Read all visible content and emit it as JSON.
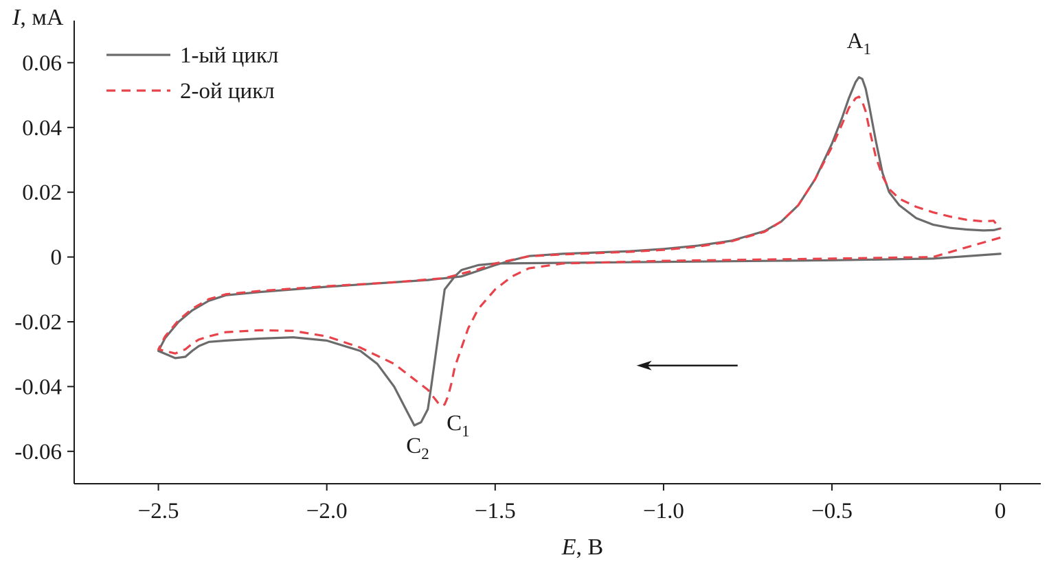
{
  "chart_data": {
    "type": "line",
    "title": "",
    "xlabel": {
      "var": "E",
      "unit": ", В"
    },
    "ylabel": {
      "var": "I",
      "unit": ", мА"
    },
    "xlim": [
      -2.75,
      0.12
    ],
    "ylim": [
      -0.07,
      0.073
    ],
    "xticks": [
      -2.5,
      -2.0,
      -1.5,
      -1.0,
      -0.5,
      0
    ],
    "xtick_labels": [
      "−2.5",
      "−2.0",
      "−1.5",
      "−1.0",
      "−0.5",
      "0"
    ],
    "yticks": [
      0.06,
      0.04,
      0.02,
      0,
      -0.02,
      -0.04,
      -0.06
    ],
    "ytick_labels": [
      "0.06",
      "0.04",
      "0.02",
      "0",
      "-0.02",
      "-0.04",
      "-0.06"
    ],
    "grid": false,
    "legend_position": "top-left",
    "series": [
      {
        "name": "1-ый цикл",
        "color": "#6b6b6b",
        "style": "solid",
        "x": [
          0.0,
          -0.2,
          -0.5,
          -1.0,
          -1.5,
          -1.55,
          -1.6,
          -1.62,
          -1.65,
          -1.67,
          -1.69,
          -1.7,
          -1.72,
          -1.74,
          -1.76,
          -1.8,
          -1.85,
          -1.9,
          -2.0,
          -2.1,
          -2.2,
          -2.3,
          -2.35,
          -2.38,
          -2.4,
          -2.42,
          -2.45,
          -2.5,
          -2.48,
          -2.44,
          -2.4,
          -2.35,
          -2.3,
          -2.2,
          -2.0,
          -1.8,
          -1.7,
          -1.6,
          -1.5,
          -1.45,
          -1.4,
          -1.3,
          -1.2,
          -1.1,
          -1.0,
          -0.9,
          -0.8,
          -0.7,
          -0.65,
          -0.6,
          -0.55,
          -0.5,
          -0.47,
          -0.45,
          -0.43,
          -0.42,
          -0.41,
          -0.4,
          -0.39,
          -0.37,
          -0.35,
          -0.33,
          -0.3,
          -0.25,
          -0.2,
          -0.15,
          -0.1,
          -0.05,
          -0.02,
          0.0
        ],
        "y": [
          0.001,
          -0.0005,
          -0.001,
          -0.0015,
          -0.002,
          -0.0025,
          -0.004,
          -0.006,
          -0.01,
          -0.025,
          -0.04,
          -0.047,
          -0.051,
          -0.052,
          -0.048,
          -0.04,
          -0.033,
          -0.029,
          -0.0258,
          -0.0248,
          -0.0252,
          -0.0258,
          -0.0262,
          -0.0275,
          -0.029,
          -0.0308,
          -0.0312,
          -0.029,
          -0.025,
          -0.02,
          -0.0165,
          -0.0135,
          -0.0118,
          -0.0108,
          -0.0092,
          -0.0078,
          -0.0071,
          -0.006,
          -0.0025,
          -0.001,
          0.0003,
          0.001,
          0.0014,
          0.0018,
          0.0025,
          0.0035,
          0.005,
          0.008,
          0.011,
          0.016,
          0.024,
          0.035,
          0.043,
          0.049,
          0.054,
          0.0555,
          0.055,
          0.052,
          0.047,
          0.036,
          0.026,
          0.02,
          0.016,
          0.012,
          0.01,
          0.009,
          0.0085,
          0.0082,
          0.0083,
          0.0088
        ]
      },
      {
        "name": "2-ой цикл",
        "color": "#e8434b",
        "style": "dashed",
        "x": [
          0.0,
          -0.2,
          -0.5,
          -1.0,
          -1.3,
          -1.4,
          -1.45,
          -1.5,
          -1.55,
          -1.58,
          -1.6,
          -1.62,
          -1.63,
          -1.64,
          -1.65,
          -1.66,
          -1.67,
          -1.7,
          -1.75,
          -1.8,
          -1.9,
          -2.0,
          -2.1,
          -2.2,
          -2.3,
          -2.35,
          -2.38,
          -2.4,
          -2.42,
          -2.45,
          -2.5,
          -2.48,
          -2.44,
          -2.4,
          -2.35,
          -2.3,
          -2.2,
          -2.0,
          -1.8,
          -1.65,
          -1.55,
          -1.5,
          -1.4,
          -1.3,
          -1.2,
          -1.1,
          -1.0,
          -0.9,
          -0.8,
          -0.7,
          -0.65,
          -0.6,
          -0.55,
          -0.5,
          -0.47,
          -0.45,
          -0.43,
          -0.42,
          -0.41,
          -0.4,
          -0.39,
          -0.37,
          -0.35,
          -0.33,
          -0.3,
          -0.25,
          -0.2,
          -0.15,
          -0.1,
          -0.05,
          -0.02,
          0.0
        ],
        "y": [
          0.006,
          0.0,
          -0.0005,
          -0.0012,
          -0.002,
          -0.0035,
          -0.006,
          -0.01,
          -0.016,
          -0.022,
          -0.028,
          -0.034,
          -0.039,
          -0.043,
          -0.0455,
          -0.046,
          -0.045,
          -0.041,
          -0.037,
          -0.033,
          -0.028,
          -0.0245,
          -0.0228,
          -0.0226,
          -0.0232,
          -0.0245,
          -0.0255,
          -0.0268,
          -0.0285,
          -0.0298,
          -0.0285,
          -0.0245,
          -0.0195,
          -0.016,
          -0.013,
          -0.0115,
          -0.0105,
          -0.009,
          -0.0078,
          -0.0065,
          -0.0038,
          -0.002,
          0.0002,
          0.0008,
          0.0012,
          0.0016,
          0.0022,
          0.0032,
          0.0048,
          0.0078,
          0.011,
          0.016,
          0.024,
          0.034,
          0.041,
          0.046,
          0.049,
          0.0495,
          0.048,
          0.045,
          0.04,
          0.031,
          0.025,
          0.021,
          0.018,
          0.0155,
          0.0138,
          0.0125,
          0.0115,
          0.011,
          0.0112,
          0.0085
        ]
      }
    ],
    "annotations": [
      {
        "id": "a1",
        "base": "A",
        "sub": "1",
        "x": -0.42,
        "y": 0.0645
      },
      {
        "id": "c1",
        "base": "C",
        "sub": "1",
        "x": -1.61,
        "y": -0.0535
      },
      {
        "id": "c2",
        "base": "C",
        "sub": "2",
        "x": -1.73,
        "y": -0.0605
      }
    ],
    "scan_direction_arrow": {
      "from": [
        -0.78,
        -0.0335
      ],
      "to": [
        -1.08,
        -0.0335
      ],
      "color": "#1a1a1a"
    }
  }
}
